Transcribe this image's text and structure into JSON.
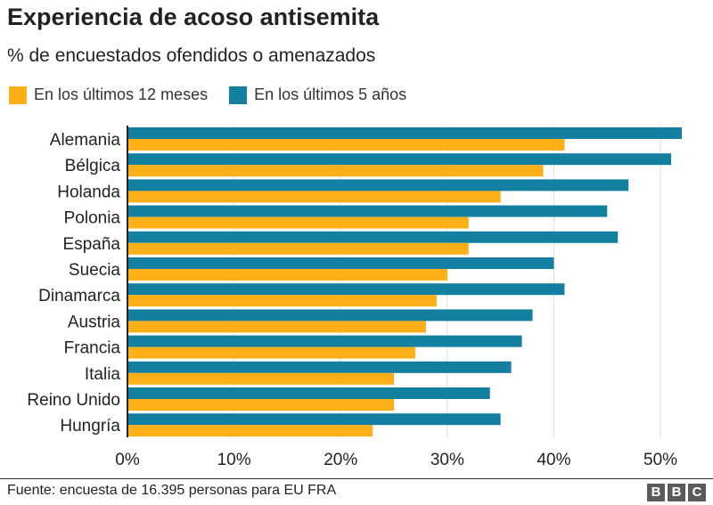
{
  "chart_data": {
    "type": "bar",
    "orientation": "horizontal",
    "title": "Experiencia de acoso antisemita",
    "subtitle": "% de encuestados ofendidos o amenazados",
    "categories": [
      "Alemania",
      "Bélgica",
      "Holanda",
      "Polonia",
      "España",
      "Suecia",
      "Dinamarca",
      "Austria",
      "Francia",
      "Italia",
      "Reino Unido",
      "Hungría"
    ],
    "series": [
      {
        "name": "En los últimos 12 meses",
        "color": "#fcaf17",
        "values": [
          41,
          39,
          35,
          32,
          32,
          30,
          29,
          28,
          27,
          25,
          25,
          23
        ]
      },
      {
        "name": "En los últimos 5 años",
        "color": "#1380a1",
        "values": [
          52,
          51,
          47,
          45,
          46,
          40,
          41,
          38,
          37,
          36,
          34,
          35
        ]
      }
    ],
    "xlim": [
      0,
      52
    ],
    "xticks": [
      "0%",
      "10%",
      "20%",
      "30%",
      "40%",
      "50%"
    ],
    "tick_values": [
      0,
      10,
      20,
      30,
      40,
      50
    ],
    "grid": true,
    "legend_position": "top-left"
  },
  "source": "Fuente: encuesta de 16.395 personas para EU FRA",
  "logo": [
    "B",
    "B",
    "C"
  ]
}
